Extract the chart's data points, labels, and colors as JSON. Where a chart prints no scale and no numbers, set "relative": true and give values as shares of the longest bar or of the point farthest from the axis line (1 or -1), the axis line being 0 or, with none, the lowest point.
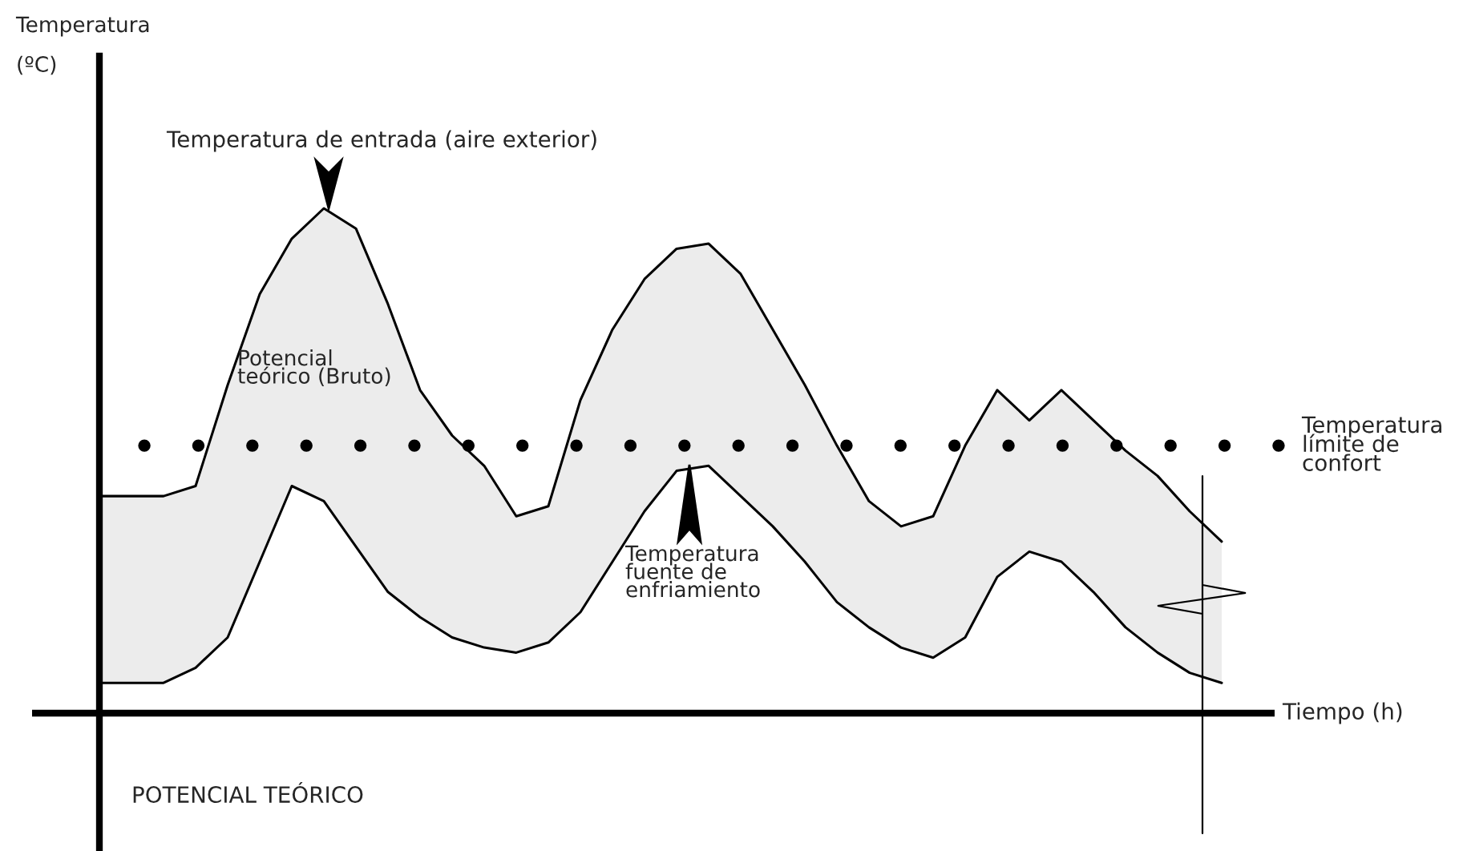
{
  "chart_data": {
    "type": "line",
    "relative": true,
    "xlabel": "Tiempo (h)",
    "categories": [
      null,
      null,
      null,
      null,
      null,
      null,
      null,
      null,
      null,
      null,
      null,
      null,
      null,
      null,
      null,
      null,
      null,
      null,
      null,
      null,
      null,
      null,
      null,
      null,
      null,
      null,
      null,
      null,
      null,
      null,
      null,
      null,
      null,
      null,
      null,
      null
    ],
    "series": [
      {
        "color": "#000000",
        "values": [
          0.43,
          0.43,
          0.43,
          0.45,
          0.65,
          0.83,
          0.94,
          1.0,
          0.96,
          0.81,
          0.64,
          0.55,
          0.49,
          0.39,
          0.41,
          0.62,
          0.76,
          0.86,
          0.92,
          0.93,
          0.87,
          0.76,
          0.65,
          0.53,
          0.42,
          0.37,
          0.39,
          0.53,
          0.64,
          0.58,
          0.64,
          0.58,
          0.52,
          0.47,
          0.4,
          0.34
        ],
        "lower": [
          0.06,
          0.06,
          0.06,
          0.09,
          0.15,
          0.3,
          0.45,
          0.42,
          0.33,
          0.24,
          0.19,
          0.15,
          0.13,
          0.12,
          0.14,
          0.2,
          0.3,
          0.4,
          0.48,
          0.49,
          0.43,
          0.37,
          0.3,
          0.22,
          0.17,
          0.13,
          0.11,
          0.15,
          0.27,
          0.32,
          0.3,
          0.24,
          0.17,
          0.12,
          0.08,
          0.06
        ],
        "upper": [
          0.43,
          0.43,
          0.43,
          0.45,
          0.65,
          0.83,
          0.94,
          1.0,
          0.96,
          0.81,
          0.64,
          0.55,
          0.49,
          0.39,
          0.41,
          0.62,
          0.76,
          0.86,
          0.92,
          0.93,
          0.87,
          0.76,
          0.65,
          0.53,
          0.42,
          0.37,
          0.39,
          0.53,
          0.64,
          0.58,
          0.64,
          0.58,
          0.52,
          0.47,
          0.4,
          0.34
        ]
      },
      {
        "color": "#000000",
        "values": [
          0.06,
          0.06,
          0.06,
          0.09,
          0.15,
          0.3,
          0.45,
          0.42,
          0.33,
          0.24,
          0.19,
          0.15,
          0.13,
          0.12,
          0.14,
          0.2,
          0.3,
          0.4,
          0.48,
          0.49,
          0.43,
          0.37,
          0.3,
          0.22,
          0.17,
          0.13,
          0.11,
          0.15,
          0.27,
          0.32,
          0.3,
          0.24,
          0.17,
          0.12,
          0.08,
          0.06
        ]
      }
    ],
    "ref_lines": [
      {
        "axis": "y",
        "value": 0.53,
        "label": "Temperatura\nlímite de\nconfort",
        "color": "#000000",
        "line_style": "dotted"
      }
    ],
    "annotations": [
      "Temperatura de entrada (aire exterior)",
      "Potencial\nteórico (Bruto)",
      "Temperatura\nfuente de\nenfriamiento",
      "POTENCIAL TEÓRICO",
      "Temperatura\n(ºC)"
    ],
    "line_style": "solid",
    "marker": "none"
  }
}
